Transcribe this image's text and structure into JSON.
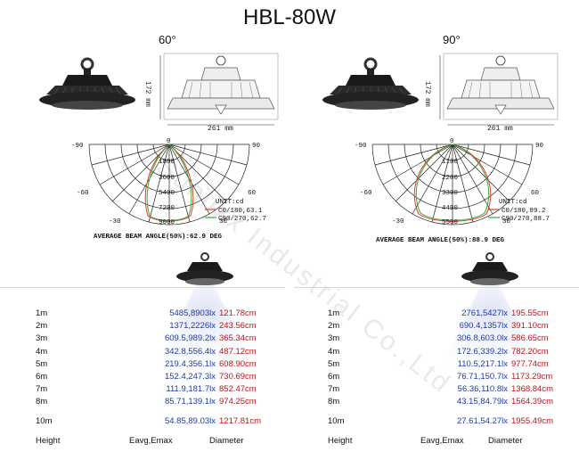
{
  "title": "HBL-80W",
  "watermark": "Sunlixx Industrial Co.,Ltd",
  "panels": [
    {
      "angle": "60°",
      "dim_height": "172 mm",
      "dim_width": "261 mm",
      "polar": {
        "angles_left": [
          "-90",
          "-60",
          "-30"
        ],
        "angles_right": [
          "90",
          "60",
          "30"
        ],
        "top_angle": "0",
        "radial": [
          "1800",
          "3600",
          "5400",
          "7200",
          "9000"
        ],
        "unit": "UNIT:cd",
        "legend": [
          "C0/180,63.1",
          "C90/270,62.7"
        ],
        "legend_colors": [
          "#e23a2a",
          "#3aa83a"
        ]
      },
      "beam_angle": "AVERAGE BEAM ANGLE(50%):62.9 DEG",
      "rows": [
        {
          "h": "1m",
          "e": "5485,8903lx",
          "d": "121.78cm"
        },
        {
          "h": "2m",
          "e": "1371,2226lx",
          "d": "243.56cm"
        },
        {
          "h": "3m",
          "e": "609.5,989.2lx",
          "d": "365.34cm"
        },
        {
          "h": "4m",
          "e": "342.8,556.4lx",
          "d": "487.12cm"
        },
        {
          "h": "5m",
          "e": "219.4,356.1lx",
          "d": "608.90cm"
        },
        {
          "h": "6m",
          "e": "152.4,247.3lx",
          "d": "730.69cm"
        },
        {
          "h": "7m",
          "e": "111.9,181.7lx",
          "d": "852.47cm"
        },
        {
          "h": "8m",
          "e": "85.71,139.1lx",
          "d": "974.25cm"
        },
        {
          "h": "10m",
          "e": "54.85,89.03lx",
          "d": "1217.81cm"
        }
      ],
      "footer": {
        "height": "Height",
        "eavg": "Eavg,Emax",
        "diameter": "Diameter"
      }
    },
    {
      "angle": "90°",
      "dim_height": "172 mm",
      "dim_width": "261 mm",
      "polar": {
        "angles_left": [
          "-90",
          "-60",
          "-30"
        ],
        "angles_right": [
          "90",
          "60",
          "30"
        ],
        "top_angle": "0",
        "radial": [
          "1100",
          "2200",
          "3300",
          "4400",
          "5500"
        ],
        "unit": "UNIT:cd",
        "legend": [
          "C0/180,89.2",
          "C90/270,88.7"
        ],
        "legend_colors": [
          "#e23a2a",
          "#3aa83a"
        ]
      },
      "beam_angle": "AVERAGE BEAM ANGLE(50%):88.9 DEG",
      "rows": [
        {
          "h": "1m",
          "e": "2761,5427lx",
          "d": "195.55cm"
        },
        {
          "h": "2m",
          "e": "690.4,1357lx",
          "d": "391.10cm"
        },
        {
          "h": "3m",
          "e": "306.8,603.0lx",
          "d": "586.65cm"
        },
        {
          "h": "4m",
          "e": "172.6,339.2lx",
          "d": "782.20cm"
        },
        {
          "h": "5m",
          "e": "110.5,217.1lx",
          "d": "977.74cm"
        },
        {
          "h": "6m",
          "e": "76.71,150.7lx",
          "d": "1173.29cm"
        },
        {
          "h": "7m",
          "e": "56.36,110.8lx",
          "d": "1368.84cm"
        },
        {
          "h": "8m",
          "e": "43.15,84.79lx",
          "d": "1564.39cm"
        },
        {
          "h": "10m",
          "e": "27.61,54.27lx",
          "d": "1955.49cm"
        }
      ],
      "footer": {
        "height": "Height",
        "eavg": "Eavg,Emax",
        "diameter": "Diameter"
      }
    }
  ]
}
